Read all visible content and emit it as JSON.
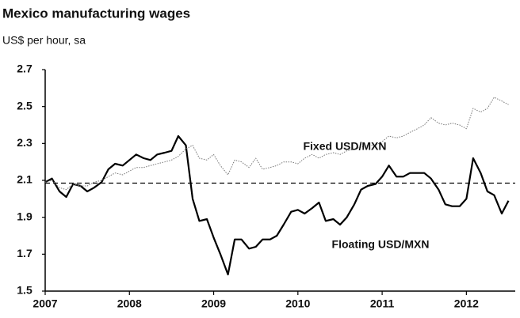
{
  "chart_data": {
    "type": "line",
    "title": "Mexico manufacturing wages",
    "subtitle": "US$ per hour, sa",
    "x": [
      2007,
      2007.08,
      2007.17,
      2007.25,
      2007.33,
      2007.42,
      2007.5,
      2007.58,
      2007.67,
      2007.75,
      2007.83,
      2007.92,
      2008,
      2008.08,
      2008.17,
      2008.25,
      2008.33,
      2008.42,
      2008.5,
      2008.58,
      2008.67,
      2008.75,
      2008.83,
      2008.92,
      2009,
      2009.08,
      2009.17,
      2009.25,
      2009.33,
      2009.42,
      2009.5,
      2009.58,
      2009.67,
      2009.75,
      2009.83,
      2009.92,
      2010,
      2010.08,
      2010.17,
      2010.25,
      2010.33,
      2010.42,
      2010.5,
      2010.58,
      2010.67,
      2010.75,
      2010.83,
      2010.92,
      2011,
      2011.08,
      2011.17,
      2011.25,
      2011.33,
      2011.42,
      2011.5,
      2011.58,
      2011.67,
      2011.75,
      2011.83,
      2011.92,
      2012,
      2012.08,
      2012.17,
      2012.25,
      2012.33,
      2012.42,
      2012.5
    ],
    "series": [
      {
        "name": "Floating USD/MXN",
        "color": "#000000",
        "width": 2.2,
        "dash": "none",
        "values": [
          2.09,
          2.11,
          2.04,
          2.01,
          2.08,
          2.07,
          2.04,
          2.06,
          2.09,
          2.16,
          2.19,
          2.18,
          2.21,
          2.24,
          2.22,
          2.21,
          2.24,
          2.25,
          2.26,
          2.34,
          2.29,
          2.0,
          1.88,
          1.89,
          1.79,
          1.7,
          1.59,
          1.78,
          1.78,
          1.73,
          1.74,
          1.78,
          1.78,
          1.8,
          1.86,
          1.93,
          1.94,
          1.92,
          1.95,
          1.98,
          1.88,
          1.89,
          1.86,
          1.9,
          1.97,
          2.05,
          2.07,
          2.08,
          2.12,
          2.18,
          2.12,
          2.12,
          2.14,
          2.14,
          2.14,
          2.11,
          2.05,
          1.97,
          1.96,
          1.96,
          2.0,
          2.22,
          2.14,
          2.04,
          2.02,
          1.92,
          1.99
        ]
      },
      {
        "name": "Fixed USD/MXN",
        "color": "#777777",
        "width": 1,
        "dash": "1.5 1.5",
        "values": [
          2.09,
          2.1,
          2.06,
          2.05,
          2.08,
          2.07,
          2.07,
          2.09,
          2.1,
          2.12,
          2.14,
          2.13,
          2.15,
          2.17,
          2.17,
          2.18,
          2.19,
          2.2,
          2.21,
          2.23,
          2.27,
          2.29,
          2.22,
          2.21,
          2.24,
          2.18,
          2.13,
          2.21,
          2.2,
          2.17,
          2.22,
          2.16,
          2.17,
          2.18,
          2.2,
          2.2,
          2.19,
          2.22,
          2.24,
          2.22,
          2.24,
          2.25,
          2.24,
          2.26,
          2.27,
          2.28,
          2.29,
          2.29,
          2.31,
          2.34,
          2.33,
          2.34,
          2.36,
          2.38,
          2.4,
          2.44,
          2.41,
          2.4,
          2.41,
          2.4,
          2.38,
          2.49,
          2.47,
          2.49,
          2.55,
          2.53,
          2.51
        ]
      }
    ],
    "reference_line": 2.085,
    "xlim": [
      2007,
      2012.58
    ],
    "xticks": [
      2007,
      2008,
      2009,
      2010,
      2011,
      2012
    ],
    "ylim": [
      1.5,
      2.7
    ],
    "yticks": [
      1.5,
      1.7,
      1.9,
      2.1,
      2.3,
      2.5,
      2.7
    ]
  }
}
